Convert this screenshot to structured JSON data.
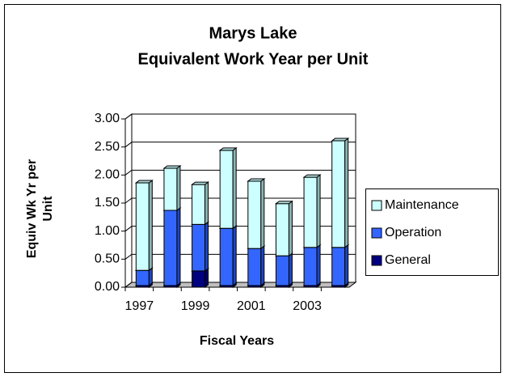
{
  "chart_data": {
    "type": "stacked_bar_3d",
    "title": [
      "Marys Lake",
      "Equivalent Work Year per Unit"
    ],
    "xlabel": "Fiscal Years",
    "ylabel": "Equiv Wk Yr per Unit",
    "categories": [
      "1997",
      null,
      "1999",
      null,
      "2001",
      null,
      "2003",
      null
    ],
    "series": [
      {
        "name": "General",
        "color": "#000080",
        "values": [
          0.03,
          0.03,
          0.29,
          0.03,
          0.03,
          0.03,
          0.03,
          0.03
        ]
      },
      {
        "name": "Operation",
        "color": "#3366ff",
        "values": [
          0.27,
          1.34,
          0.83,
          1.02,
          0.66,
          0.53,
          0.68,
          0.68
        ]
      },
      {
        "name": "Maintenance",
        "color": "#ccffff",
        "values": [
          1.56,
          0.75,
          0.71,
          1.39,
          1.2,
          0.93,
          1.25,
          1.9
        ]
      }
    ],
    "ylim": [
      0,
      3
    ],
    "yticks": [
      {
        "value": 0,
        "label": "0.00"
      },
      {
        "value": 0.5,
        "label": "0.50"
      },
      {
        "value": 1,
        "label": "1.00"
      },
      {
        "value": 1.5,
        "label": "1.50"
      },
      {
        "value": 2,
        "label": "2.00"
      },
      {
        "value": 2.5,
        "label": "2.50"
      },
      {
        "value": 3,
        "label": "3.00"
      }
    ],
    "grid": true,
    "legend": "right"
  }
}
